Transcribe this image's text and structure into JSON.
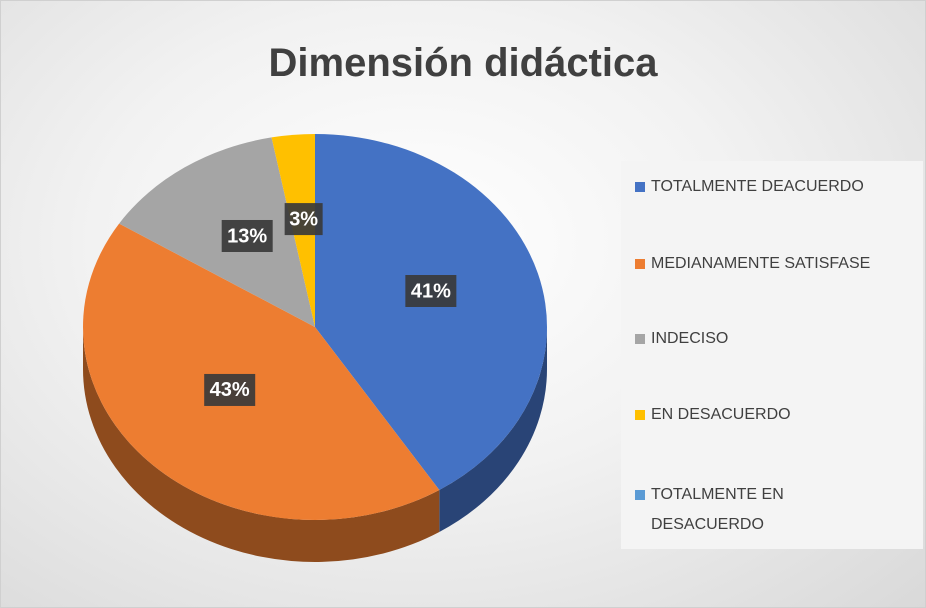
{
  "chart_data": {
    "type": "pie",
    "title": "Dimensión didáctica",
    "categories": [
      "TOTALMENTE DEACUERDO",
      "MEDIANAMENTE SATISFASE",
      "INDECISO",
      "EN DESACUERDO",
      "TOTALMENTE EN DESACUERDO"
    ],
    "values": [
      41,
      43,
      13,
      3,
      0
    ],
    "value_labels": [
      "41%",
      "43%",
      "13%",
      "3%",
      null
    ],
    "colors": [
      "#4472c4",
      "#ed7d31",
      "#a5a5a5",
      "#ffc000",
      "#5b9bd5"
    ],
    "legend": "right"
  }
}
